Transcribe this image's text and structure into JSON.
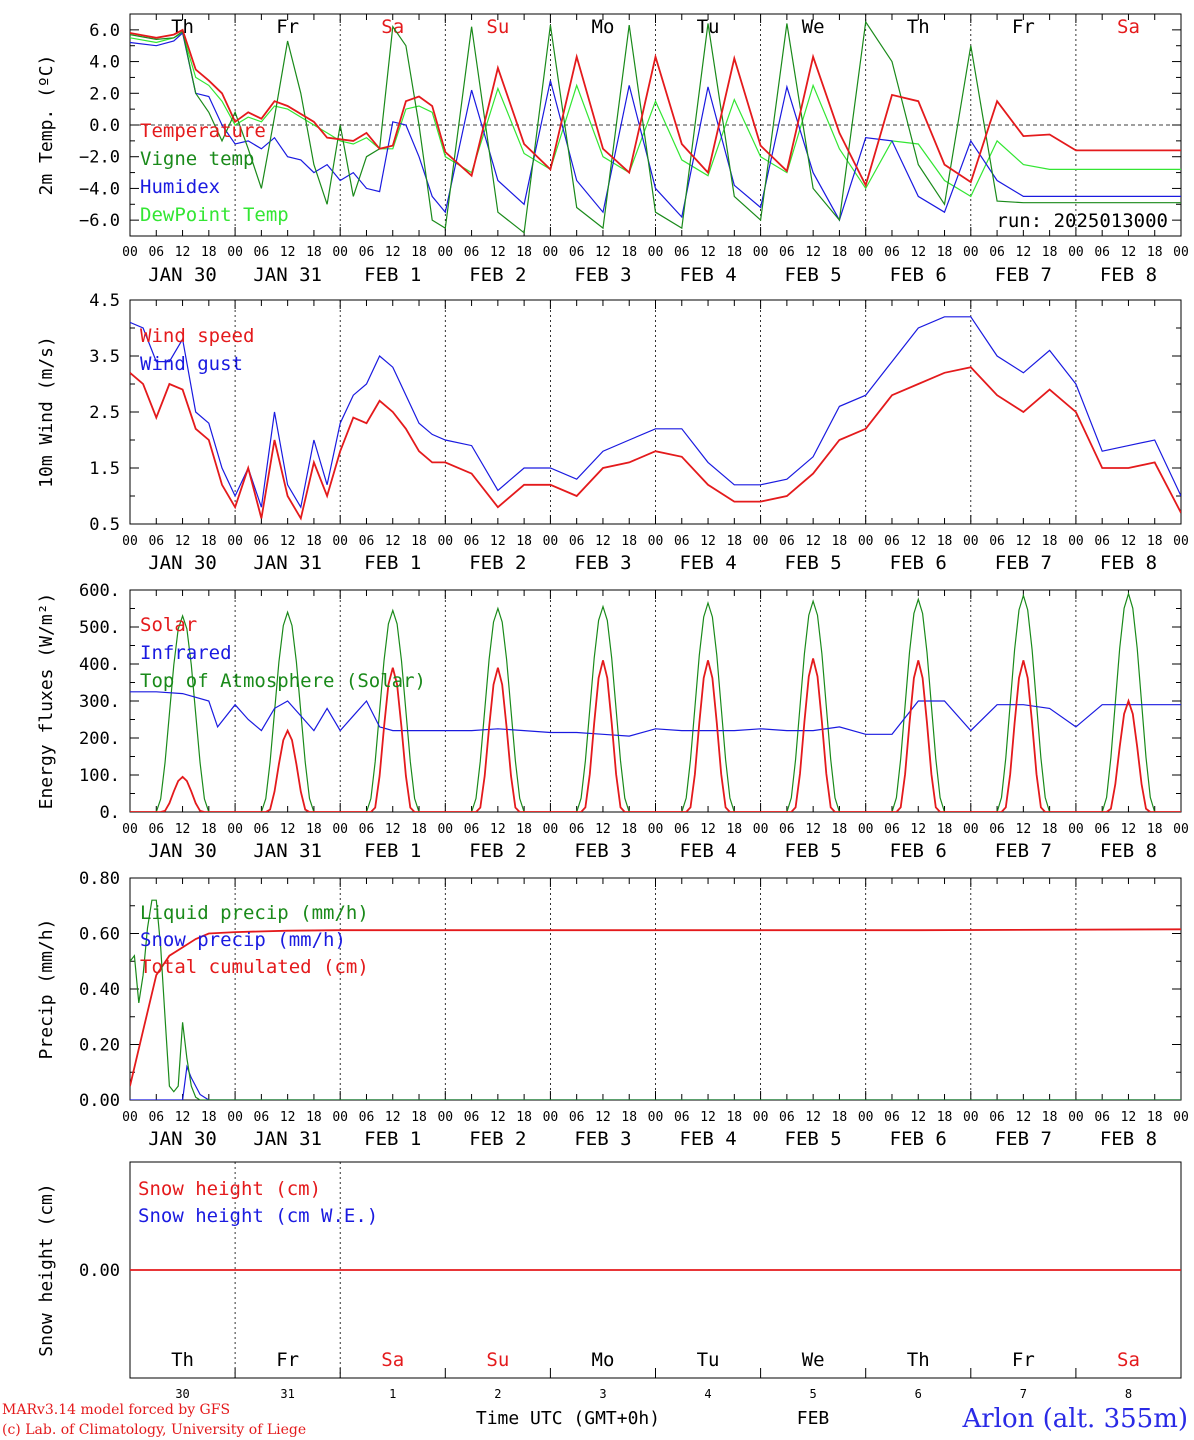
{
  "run_label": "run: 2025013000",
  "footer": {
    "model": "MARv3.14 model forced by GFS",
    "lab": "(c) Lab. of Climatology, University of Liege",
    "xlabel": "Time UTC (GMT+0h)",
    "month": "FEB",
    "station": "Arlon (alt. 355m)"
  },
  "days": {
    "weekday": [
      "Th",
      "Fr",
      "Sa",
      "Su",
      "Mo",
      "Tu",
      "We",
      "Th",
      "Fr",
      "Sa"
    ],
    "weekend": [
      false,
      false,
      true,
      true,
      false,
      false,
      false,
      false,
      false,
      true
    ],
    "date_labels": [
      "JAN 30",
      "JAN 31",
      "FEB  1",
      "FEB  2",
      "FEB  3",
      "FEB  4",
      "FEB  5",
      "FEB  6",
      "FEB  7",
      "FEB  8"
    ],
    "day_numbers": [
      "30",
      "31",
      "1",
      "2",
      "3",
      "4",
      "5",
      "6",
      "7",
      "8"
    ],
    "hour_ticks": [
      "00",
      "06",
      "12",
      "18"
    ],
    "final_tick": "00"
  },
  "colors": {
    "red": "#e41a1c",
    "green": "#1a8a1a",
    "blue": "#1a1ae0",
    "lightgreen": "#33e633",
    "axis": "#000000"
  },
  "chart_data": [
    {
      "type": "line",
      "ylabel": "2m Temp. (ºC)",
      "ylim": [
        -7,
        7
      ],
      "yticks": [
        -6,
        -4,
        -2,
        0,
        2,
        4,
        6
      ],
      "ytick_labels": [
        "−6.0",
        "−4.0",
        "−2.0",
        "0.0",
        "2.0",
        "4.0",
        "6.0"
      ],
      "x_unit": "hours since JAN 30 00 UTC",
      "xlim": [
        0,
        240
      ],
      "zero_line": true,
      "series": [
        {
          "name": "Temperature",
          "color": "red",
          "x": [
            0,
            6,
            10,
            12,
            15,
            18,
            21,
            24,
            27,
            30,
            33,
            36,
            42,
            45,
            48,
            51,
            54,
            57,
            60,
            63,
            66,
            69,
            72,
            78,
            84,
            90,
            96,
            102,
            108,
            114,
            120,
            126,
            132,
            138,
            144,
            150,
            156,
            162,
            168,
            174,
            180,
            186,
            192,
            198,
            204,
            210,
            216,
            222,
            228,
            234,
            240
          ],
          "values": [
            5.8,
            5.5,
            5.7,
            6.0,
            3.5,
            2.8,
            2.0,
            0.2,
            0.8,
            0.4,
            1.5,
            1.2,
            0.2,
            -0.8,
            -0.9,
            -1.0,
            -0.5,
            -1.5,
            -1.3,
            1.5,
            1.8,
            1.2,
            -1.7,
            -3.2,
            3.6,
            -1.2,
            -2.8,
            4.3,
            -1.5,
            -3.0,
            4.3,
            -1.2,
            -3.0,
            4.2,
            -1.3,
            -2.9,
            4.3,
            -0.5,
            -3.8,
            1.9,
            1.5,
            -2.5,
            -3.6,
            1.5,
            -0.7,
            -0.6,
            -1.6,
            -1.6,
            -1.6,
            -1.6,
            -1.6
          ]
        },
        {
          "name": "Vigne temp",
          "color": "green",
          "x": [
            0,
            6,
            10,
            12,
            15,
            18,
            21,
            24,
            27,
            30,
            33,
            36,
            39,
            42,
            45,
            48,
            51,
            54,
            57,
            60,
            63,
            66,
            69,
            72,
            78,
            84,
            90,
            96,
            102,
            108,
            114,
            120,
            126,
            132,
            138,
            144,
            150,
            156,
            162,
            168,
            174,
            180,
            186,
            192,
            198,
            204,
            210,
            216,
            222,
            228,
            234,
            240
          ],
          "values": [
            5.7,
            5.4,
            5.5,
            5.9,
            2.0,
            0.8,
            -1.0,
            0.8,
            -1.5,
            -4.0,
            0.5,
            5.3,
            2.0,
            -2.5,
            -5.0,
            0.0,
            -4.5,
            -2.0,
            -1.5,
            6.2,
            5.0,
            0.0,
            -6.0,
            -6.5,
            6.2,
            -5.5,
            -6.8,
            6.3,
            -5.2,
            -6.5,
            6.3,
            -5.5,
            -6.5,
            6.4,
            -4.5,
            -6.0,
            6.4,
            -4.0,
            -6.0,
            6.5,
            4.0,
            -2.5,
            -5.0,
            5.0,
            -4.8,
            -4.9,
            -4.9,
            -4.9,
            -4.9,
            -4.9,
            -4.9,
            -4.9
          ]
        },
        {
          "name": "Humidex",
          "color": "blue",
          "x": [
            0,
            6,
            10,
            12,
            15,
            18,
            21,
            24,
            27,
            30,
            33,
            36,
            39,
            42,
            45,
            48,
            51,
            54,
            57,
            60,
            63,
            66,
            69,
            72,
            78,
            84,
            90,
            96,
            102,
            108,
            114,
            120,
            126,
            132,
            138,
            144,
            150,
            156,
            162,
            168,
            174,
            180,
            186,
            192,
            198,
            204,
            210,
            216,
            222,
            228,
            234,
            240
          ],
          "values": [
            5.2,
            5.0,
            5.3,
            5.8,
            2.0,
            1.8,
            0.0,
            -1.2,
            -1.0,
            -1.5,
            -0.8,
            -2.0,
            -2.2,
            -3.0,
            -2.5,
            -3.5,
            -3.0,
            -4.0,
            -4.2,
            0.2,
            0.0,
            -2.0,
            -4.5,
            -5.5,
            2.2,
            -3.5,
            -5.0,
            2.8,
            -3.5,
            -5.5,
            2.5,
            -4.0,
            -5.8,
            2.4,
            -3.8,
            -5.2,
            2.4,
            -3.0,
            -6.0,
            -0.8,
            -1.0,
            -4.5,
            -5.5,
            -1.0,
            -3.5,
            -4.5,
            -4.5,
            -4.5,
            -4.5,
            -4.5,
            -4.5,
            -4.5
          ]
        },
        {
          "name": "DewPoint Temp",
          "color": "lightgreen",
          "x": [
            0,
            6,
            10,
            12,
            15,
            18,
            21,
            24,
            27,
            30,
            33,
            36,
            39,
            42,
            45,
            48,
            51,
            54,
            57,
            60,
            63,
            66,
            69,
            72,
            78,
            84,
            90,
            96,
            102,
            108,
            114,
            120,
            126,
            132,
            138,
            144,
            150,
            156,
            162,
            168,
            174,
            180,
            186,
            192,
            198,
            204,
            210,
            216,
            222,
            228,
            234,
            240
          ],
          "values": [
            5.5,
            5.2,
            5.5,
            5.8,
            3.0,
            2.5,
            1.5,
            0.0,
            0.5,
            0.2,
            1.2,
            1.0,
            0.5,
            0.0,
            -0.5,
            -1.0,
            -1.2,
            -0.8,
            -1.5,
            -1.5,
            1.0,
            1.2,
            0.8,
            -2.0,
            -3.0,
            2.3,
            -1.8,
            -2.8,
            2.5,
            -2.0,
            -3.0,
            1.5,
            -2.2,
            -3.2,
            1.6,
            -2.0,
            -3.0,
            2.5,
            -1.5,
            -4.0,
            -1.0,
            -1.2,
            -3.5,
            -4.5,
            -1.0,
            -2.5,
            -2.8,
            -2.8,
            -2.8,
            -2.8,
            -2.8,
            -2.8
          ]
        }
      ]
    },
    {
      "type": "line",
      "ylabel": "10m Wind (m/s)",
      "ylim": [
        0.5,
        4.5
      ],
      "yticks": [
        0.5,
        1.5,
        2.5,
        3.5,
        4.5
      ],
      "ytick_labels": [
        "0.5",
        "1.5",
        "2.5",
        "3.5",
        "4.5"
      ],
      "x_unit": "hours since JAN 30 00 UTC",
      "xlim": [
        0,
        240
      ],
      "series": [
        {
          "name": "Wind speed",
          "color": "red",
          "x": [
            0,
            3,
            6,
            9,
            12,
            15,
            18,
            21,
            24,
            27,
            30,
            33,
            36,
            39,
            42,
            45,
            48,
            51,
            54,
            57,
            60,
            63,
            66,
            69,
            72,
            78,
            84,
            90,
            96,
            102,
            108,
            114,
            120,
            126,
            132,
            138,
            144,
            150,
            156,
            162,
            168,
            174,
            180,
            186,
            192,
            198,
            204,
            210,
            216,
            222,
            228,
            234,
            240
          ],
          "values": [
            3.2,
            3.0,
            2.4,
            3.0,
            2.9,
            2.2,
            2.0,
            1.2,
            0.8,
            1.5,
            0.6,
            2.0,
            1.0,
            0.6,
            1.6,
            1.0,
            1.8,
            2.4,
            2.3,
            2.7,
            2.5,
            2.2,
            1.8,
            1.6,
            1.6,
            1.4,
            0.8,
            1.2,
            1.2,
            1.0,
            1.5,
            1.6,
            1.8,
            1.7,
            1.2,
            0.9,
            0.9,
            1.0,
            1.4,
            2.0,
            2.2,
            2.8,
            3.0,
            3.2,
            3.3,
            2.8,
            2.5,
            2.9,
            2.5,
            1.5,
            1.5,
            1.6,
            0.7
          ]
        },
        {
          "name": "Wind gust",
          "color": "blue",
          "x": [
            0,
            3,
            6,
            9,
            12,
            15,
            18,
            21,
            24,
            27,
            30,
            33,
            36,
            39,
            42,
            45,
            48,
            51,
            54,
            57,
            60,
            63,
            66,
            69,
            72,
            78,
            84,
            90,
            96,
            102,
            108,
            114,
            120,
            126,
            132,
            138,
            144,
            150,
            156,
            162,
            168,
            174,
            180,
            186,
            192,
            198,
            204,
            210,
            216,
            222,
            228,
            234,
            240
          ],
          "values": [
            4.1,
            4.0,
            3.4,
            3.4,
            3.8,
            2.5,
            2.3,
            1.5,
            1.0,
            1.5,
            0.8,
            2.5,
            1.2,
            0.8,
            2.0,
            1.2,
            2.3,
            2.8,
            3.0,
            3.5,
            3.3,
            2.8,
            2.3,
            2.1,
            2.0,
            1.9,
            1.1,
            1.5,
            1.5,
            1.3,
            1.8,
            2.0,
            2.2,
            2.2,
            1.6,
            1.2,
            1.2,
            1.3,
            1.7,
            2.6,
            2.8,
            3.4,
            4.0,
            4.2,
            4.2,
            3.5,
            3.2,
            3.6,
            3.0,
            1.8,
            1.9,
            2.0,
            1.0
          ]
        }
      ]
    },
    {
      "type": "line",
      "ylabel": "Energy fluxes (W/m²)",
      "ylim": [
        0,
        600
      ],
      "yticks": [
        0,
        100,
        200,
        300,
        400,
        500,
        600
      ],
      "ytick_labels": [
        "0.",
        "100.",
        "200.",
        "300.",
        "400.",
        "500.",
        "600."
      ],
      "x_unit": "hours since JAN 30 00 UTC",
      "xlim": [
        0,
        240
      ],
      "series": [
        {
          "name": "Solar",
          "color": "red",
          "daily_peaks": [
            95,
            220,
            390,
            390,
            410,
            410,
            415,
            410,
            410,
            300
          ]
        },
        {
          "name": "Infrared",
          "color": "blue",
          "x": [
            0,
            6,
            12,
            18,
            20,
            24,
            27,
            30,
            33,
            36,
            42,
            45,
            48,
            51,
            54,
            57,
            60,
            66,
            72,
            78,
            84,
            90,
            96,
            102,
            108,
            114,
            120,
            126,
            132,
            138,
            144,
            150,
            156,
            162,
            168,
            174,
            180,
            186,
            192,
            198,
            204,
            210,
            216,
            222,
            228,
            234,
            240
          ],
          "values": [
            325,
            325,
            320,
            300,
            230,
            290,
            250,
            220,
            280,
            300,
            220,
            280,
            220,
            260,
            300,
            230,
            220,
            220,
            220,
            220,
            225,
            220,
            215,
            215,
            210,
            205,
            225,
            220,
            220,
            220,
            225,
            220,
            220,
            230,
            210,
            210,
            300,
            300,
            220,
            290,
            290,
            280,
            230,
            290,
            290,
            290,
            290
          ]
        },
        {
          "name": "Top of Atmosphere (Solar)",
          "color": "green",
          "daily_peaks": [
            530,
            540,
            545,
            550,
            555,
            565,
            570,
            575,
            585,
            590
          ]
        }
      ]
    },
    {
      "type": "line",
      "ylabel": "Precip (mm/h)",
      "ylim": [
        0,
        0.8
      ],
      "yticks": [
        0,
        0.2,
        0.4,
        0.6,
        0.8
      ],
      "ytick_labels": [
        "0.00",
        "0.20",
        "0.40",
        "0.60",
        "0.80"
      ],
      "x_unit": "hours since JAN 30 00 UTC",
      "xlim": [
        0,
        240
      ],
      "series": [
        {
          "name": "Liquid precip (mm/h)",
          "color": "green",
          "x": [
            0,
            1,
            2,
            3,
            4,
            5,
            6,
            7,
            8,
            9,
            10,
            11,
            12,
            13,
            14,
            15,
            16,
            17,
            18,
            24,
            36,
            48,
            240
          ],
          "values": [
            0.5,
            0.52,
            0.35,
            0.45,
            0.62,
            0.72,
            0.72,
            0.55,
            0.3,
            0.05,
            0.03,
            0.05,
            0.28,
            0.15,
            0.05,
            0.01,
            0.0,
            0.0,
            0.0,
            0.0,
            0.0,
            0.0,
            0.0
          ]
        },
        {
          "name": "Snow precip (mm/h)",
          "color": "blue",
          "x": [
            0,
            12,
            13,
            14,
            15,
            16,
            17,
            18,
            20,
            24,
            36,
            48,
            240
          ],
          "values": [
            0.0,
            0.0,
            0.12,
            0.08,
            0.05,
            0.02,
            0.01,
            0.0,
            0.0,
            0.0,
            0.0,
            0.0,
            0.0
          ]
        },
        {
          "name": "Total cumulated (cm)",
          "color": "red",
          "x": [
            0,
            3,
            6,
            9,
            12,
            15,
            18,
            24,
            36,
            48,
            72,
            120,
            180,
            240
          ],
          "values": [
            0.05,
            0.25,
            0.45,
            0.52,
            0.55,
            0.58,
            0.6,
            0.605,
            0.61,
            0.612,
            0.612,
            0.612,
            0.612,
            0.615
          ]
        }
      ]
    },
    {
      "type": "line",
      "ylabel": "Snow height (cm)",
      "ylim": [
        -0.02,
        0.02
      ],
      "yticks": [
        0
      ],
      "ytick_labels": [
        "0.00"
      ],
      "x_unit": "hours since JAN 30 00 UTC",
      "xlim": [
        0,
        240
      ],
      "series": [
        {
          "name": "Snow height (cm)",
          "color": "red",
          "x": [
            0,
            240
          ],
          "values": [
            0,
            0
          ]
        },
        {
          "name": "Snow height (cm W.E.)",
          "color": "blue",
          "x": [],
          "values": []
        }
      ]
    }
  ]
}
